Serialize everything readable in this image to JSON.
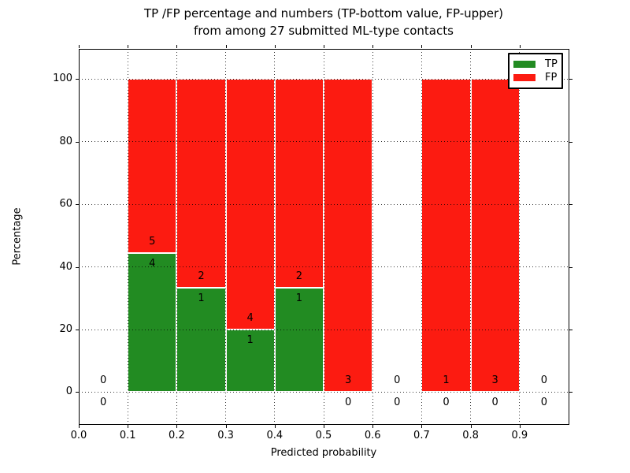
{
  "title": {
    "line1": "TP /FP percentage and numbers (TP-bottom value, FP-upper)",
    "line2": "from among 27 submitted ML-type contacts"
  },
  "chart_data": {
    "type": "bar",
    "stacked": true,
    "title": "TP /FP percentage and numbers (TP-bottom value, FP-upper) from among 27 submitted ML-type contacts",
    "xlabel": "Predicted probability",
    "ylabel": "Percentage",
    "xlim": [
      0.0,
      1.0
    ],
    "ylim": [
      -10.2,
      109.6
    ],
    "grid": "dotted, drawn above bars",
    "legend_position": "upper right",
    "legend": [
      "TP",
      "FP"
    ],
    "colors": {
      "tp": "#228b22",
      "fp": "#fc1b11",
      "bar_edge": "#ffffff"
    },
    "total_contacts": 27,
    "yticks": [
      0,
      20,
      40,
      60,
      80,
      100
    ],
    "xtick_labels": [
      "0.0",
      "0.1",
      "0.2",
      "0.3",
      "0.4",
      "0.5",
      "0.6",
      "0.7",
      "0.8",
      "0.9"
    ],
    "bin_edges": [
      0.0,
      0.1,
      0.2,
      0.3,
      0.4,
      0.5,
      0.6,
      0.7,
      0.8,
      0.9,
      1.0
    ],
    "bins": [
      {
        "range": [
          0.0,
          0.1
        ],
        "tp": 0,
        "fp": 0,
        "tp_pct": 0,
        "fp_pct": 0
      },
      {
        "range": [
          0.1,
          0.2
        ],
        "tp": 4,
        "fp": 5,
        "tp_pct": 44.4,
        "fp_pct": 55.6
      },
      {
        "range": [
          0.2,
          0.3
        ],
        "tp": 1,
        "fp": 2,
        "tp_pct": 33.3,
        "fp_pct": 66.7
      },
      {
        "range": [
          0.3,
          0.4
        ],
        "tp": 1,
        "fp": 4,
        "tp_pct": 20.0,
        "fp_pct": 80.0
      },
      {
        "range": [
          0.4,
          0.5
        ],
        "tp": 1,
        "fp": 2,
        "tp_pct": 33.3,
        "fp_pct": 66.7
      },
      {
        "range": [
          0.5,
          0.6
        ],
        "tp": 0,
        "fp": 3,
        "tp_pct": 0,
        "fp_pct": 100
      },
      {
        "range": [
          0.6,
          0.7
        ],
        "tp": 0,
        "fp": 0,
        "tp_pct": 0,
        "fp_pct": 0
      },
      {
        "range": [
          0.7,
          0.8
        ],
        "tp": 0,
        "fp": 1,
        "tp_pct": 0,
        "fp_pct": 100
      },
      {
        "range": [
          0.8,
          0.9
        ],
        "tp": 0,
        "fp": 3,
        "tp_pct": 0,
        "fp_pct": 100
      },
      {
        "range": [
          0.9,
          1.0
        ],
        "tp": 0,
        "fp": 0,
        "tp_pct": 0,
        "fp_pct": 0
      }
    ]
  }
}
